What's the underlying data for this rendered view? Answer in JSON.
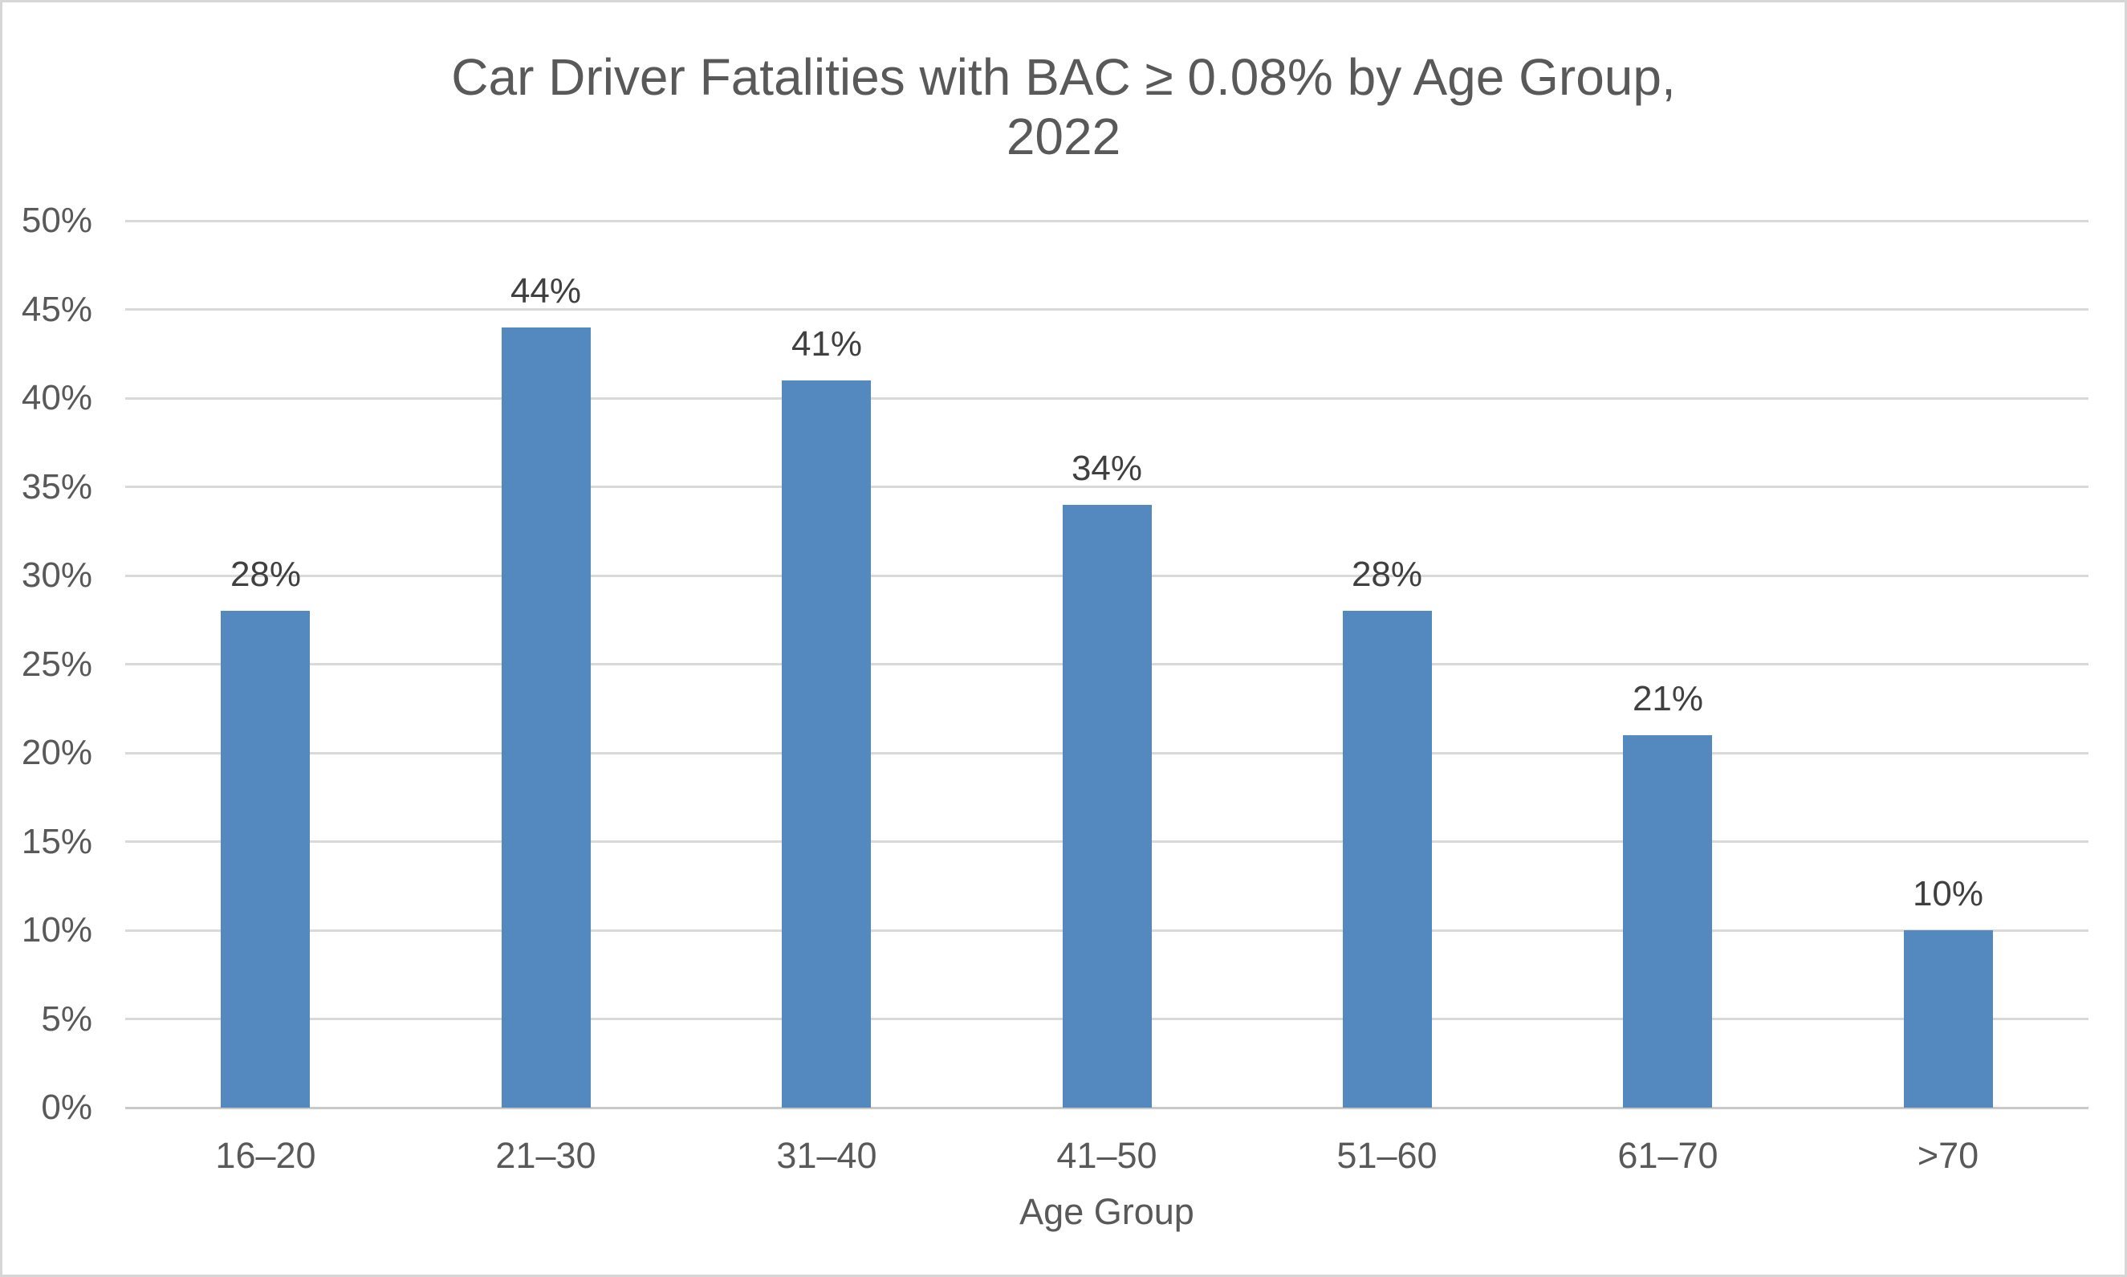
{
  "header": {
    "line1": "Car Driver Fatalities with BAC ≥ 0.08% by Age Group,",
    "line2": "2022"
  },
  "chart_data": {
    "type": "bar",
    "title": "Car Driver Fatalities with BAC ≥ 0.08% by Age Group, 2022",
    "categories": [
      "16–20",
      "21–30",
      "31–40",
      "41–50",
      "51–60",
      "61–70",
      ">70"
    ],
    "values": [
      28,
      44,
      41,
      34,
      28,
      21,
      10
    ],
    "value_labels": [
      "28%",
      "44%",
      "41%",
      "34%",
      "28%",
      "21%",
      "10%"
    ],
    "xlabel": "Age Group",
    "ylabel": "",
    "ylim": [
      0,
      50
    ],
    "ytick_step": 5,
    "ytick_labels": [
      "0%",
      "5%",
      "10%",
      "15%",
      "20%",
      "25%",
      "30%",
      "35%",
      "40%",
      "45%",
      "50%"
    ],
    "grid": "horizontal",
    "legend": "none",
    "bar_color": "#5389be",
    "gridline_color": "#d9d9d9",
    "axis_line_color": "#c9c9c9",
    "title_color": "#595959",
    "tick_label_color": "#595959",
    "data_label_color": "#404040"
  }
}
